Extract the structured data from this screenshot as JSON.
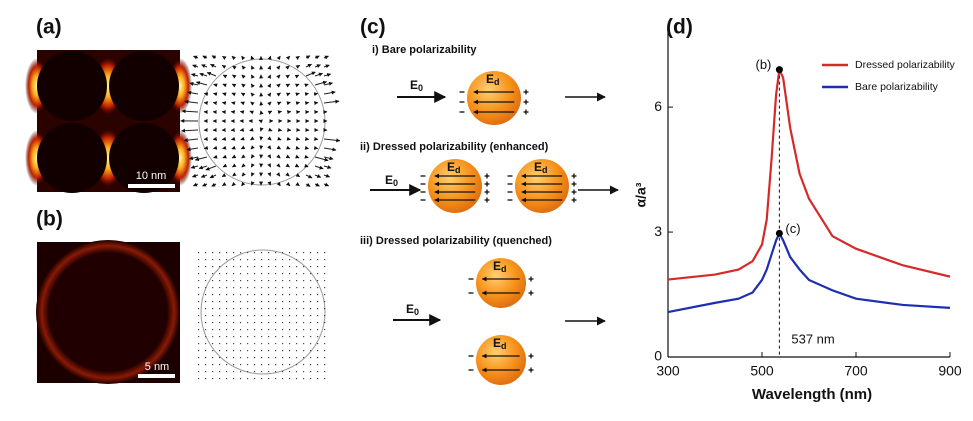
{
  "panels": {
    "a": {
      "label": "(a)",
      "scale_bar": "10 nm"
    },
    "b": {
      "label": "(b)",
      "scale_bar": "5 nm"
    },
    "c": {
      "label": "(c)",
      "rows": [
        "i) Bare polarizability",
        "ii) Dressed polarizability (enhanced)",
        "iii) Dressed polarizability (quenched)"
      ],
      "incident_field": {
        "base": "E",
        "sub": "0"
      },
      "dipole_field": {
        "base": "E",
        "sub": "d"
      }
    },
    "d": {
      "label": "(d)"
    }
  },
  "chart_data": {
    "type": "line",
    "x_label": "Wavelength (nm)",
    "y_label": "α/a³",
    "x": [
      300,
      400,
      450,
      480,
      500,
      510,
      520,
      530,
      537,
      545,
      560,
      580,
      600,
      650,
      700,
      800,
      900
    ],
    "series": [
      {
        "name": "Dressed polarizability",
        "color": "#d62a2a",
        "values": [
          1.86,
          1.98,
          2.1,
          2.3,
          2.7,
          3.3,
          4.7,
          6.3,
          6.9,
          6.7,
          5.5,
          4.4,
          3.8,
          2.9,
          2.6,
          2.2,
          1.93
        ]
      },
      {
        "name": "Bare polarizability",
        "color": "#1c2fb0",
        "values": [
          1.08,
          1.3,
          1.4,
          1.55,
          1.85,
          2.1,
          2.45,
          2.8,
          2.97,
          2.8,
          2.4,
          2.1,
          1.85,
          1.6,
          1.4,
          1.25,
          1.18
        ]
      }
    ],
    "xlim": [
      300,
      900
    ],
    "xticks": [
      300,
      500,
      700,
      900
    ],
    "ylim": [
      0,
      7.9
    ],
    "yticks": [
      0,
      3,
      6
    ],
    "legend": "upper right",
    "annotations": [
      {
        "text": "(b)",
        "x": 537,
        "y": 6.9
      },
      {
        "text": "(c)",
        "x": 537,
        "y": 2.97
      },
      {
        "text": "537 nm",
        "x": 537
      }
    ]
  }
}
